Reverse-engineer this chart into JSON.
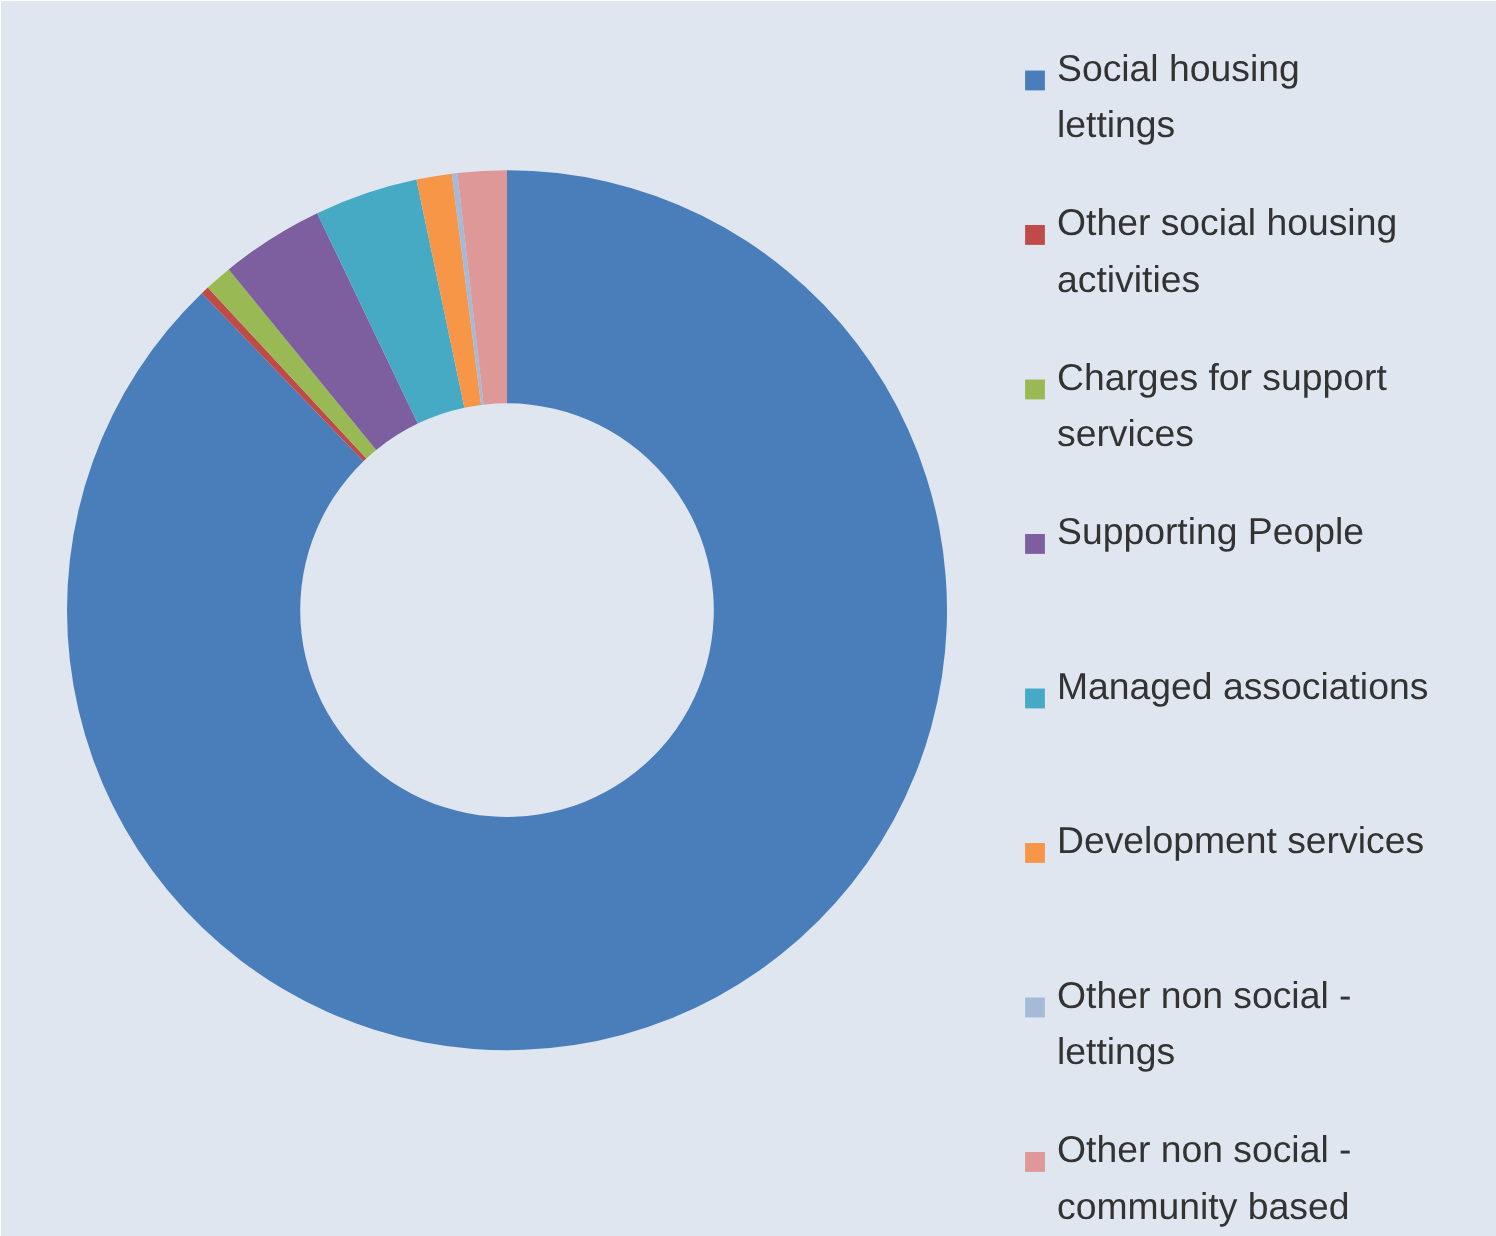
{
  "chart_data": {
    "type": "donut",
    "categories": [
      "Social housing lettings",
      "Other social housing activities",
      "Charges for support services",
      "Supporting People",
      "Managed associations",
      "Development services",
      "Other non social - lettings",
      "Other non social - community based"
    ],
    "values": [
      87.8,
      0.3,
      1.0,
      3.8,
      3.8,
      1.3,
      0.2,
      1.8
    ],
    "colors": [
      "#4a7ebb",
      "#be4b48",
      "#98b954",
      "#7d5fa0",
      "#46aac5",
      "#f79646",
      "#a5b9d9",
      "#dd9897"
    ],
    "legend": "right"
  }
}
